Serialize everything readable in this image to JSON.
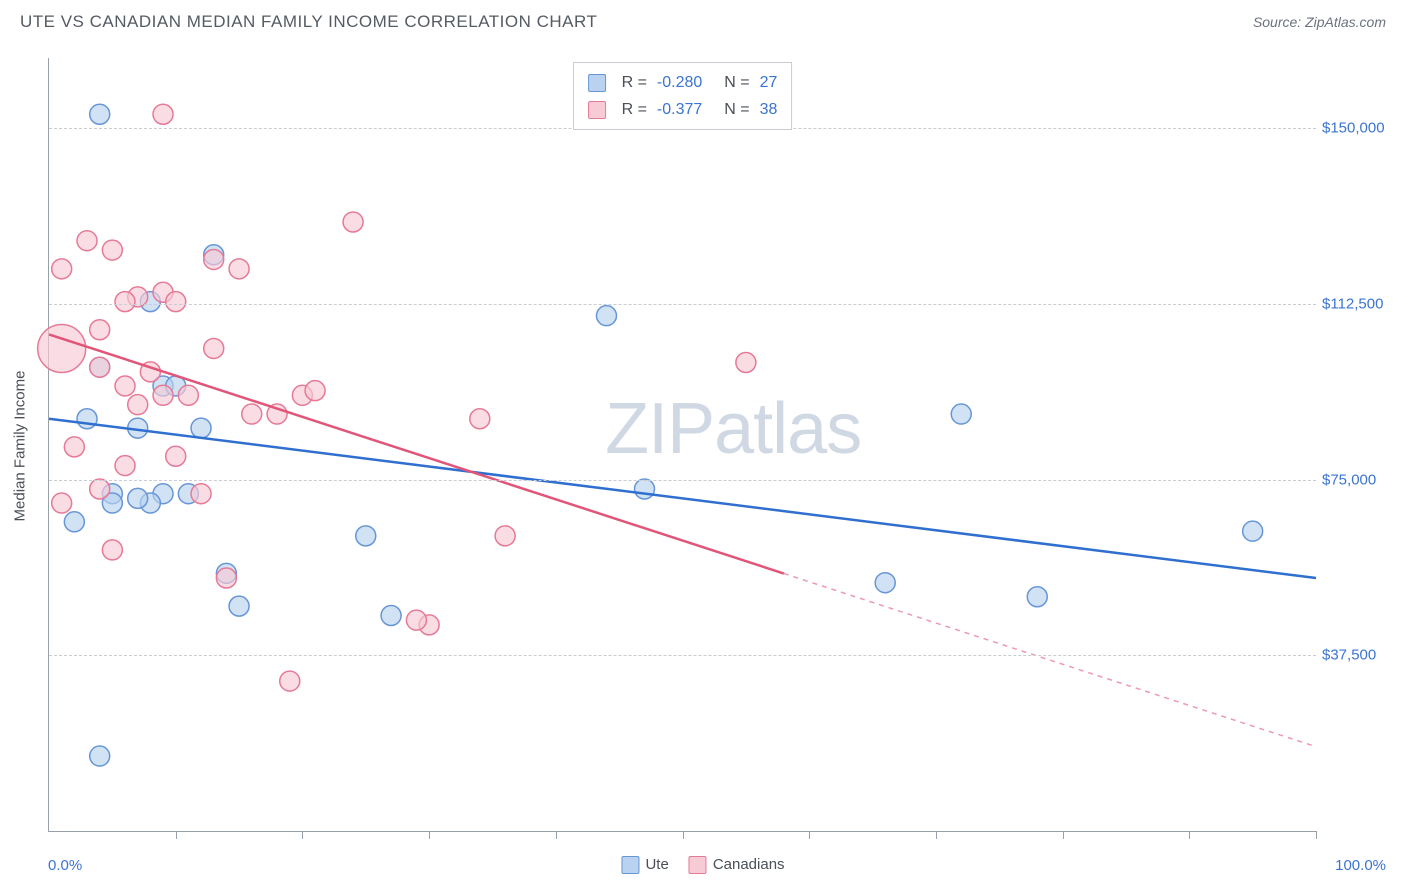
{
  "header": {
    "title": "UTE VS CANADIAN MEDIAN FAMILY INCOME CORRELATION CHART",
    "source": "Source: ZipAtlas.com"
  },
  "chart": {
    "type": "scatter",
    "y_axis_title": "Median Family Income",
    "xlim": [
      0,
      100
    ],
    "ylim": [
      0,
      165000
    ],
    "x_min_label": "0.0%",
    "x_max_label": "100.0%",
    "y_ticks": [
      {
        "value": 37500,
        "label": "$37,500"
      },
      {
        "value": 75000,
        "label": "$75,000"
      },
      {
        "value": 112500,
        "label": "$112,500"
      },
      {
        "value": 150000,
        "label": "$150,000"
      }
    ],
    "x_tick_positions": [
      10,
      20,
      30,
      40,
      50,
      60,
      70,
      80,
      90,
      100
    ],
    "grid_color": "#c8cdd3",
    "axis_color": "#9aa0a8",
    "background_color": "#ffffff",
    "watermark_parts": [
      "ZIP",
      "atlas"
    ],
    "watermark_color": "#cfd8e3",
    "series": [
      {
        "name": "Ute",
        "fill": "#b9d2f0",
        "stroke": "#6796d6",
        "line_color": "#2f6fcf",
        "marker_radius_px": 10,
        "stats": {
          "r": "-0.280",
          "n": "27"
        },
        "trend": {
          "x1": 0,
          "y1": 88000,
          "x2": 100,
          "y2": 54000,
          "dashed_from_x": null
        },
        "points": [
          {
            "x": 4,
            "y": 153000
          },
          {
            "x": 8,
            "y": 113000
          },
          {
            "x": 13,
            "y": 123000
          },
          {
            "x": 4,
            "y": 99000
          },
          {
            "x": 9,
            "y": 95000
          },
          {
            "x": 3,
            "y": 88000
          },
          {
            "x": 7,
            "y": 86000
          },
          {
            "x": 12,
            "y": 86000
          },
          {
            "x": 5,
            "y": 72000
          },
          {
            "x": 9,
            "y": 72000
          },
          {
            "x": 11,
            "y": 72000
          },
          {
            "x": 8,
            "y": 70000
          },
          {
            "x": 2,
            "y": 66000
          },
          {
            "x": 14,
            "y": 55000
          },
          {
            "x": 7,
            "y": 71000
          },
          {
            "x": 5,
            "y": 70000
          },
          {
            "x": 15,
            "y": 48000
          },
          {
            "x": 25,
            "y": 63000
          },
          {
            "x": 27,
            "y": 46000
          },
          {
            "x": 44,
            "y": 110000
          },
          {
            "x": 47,
            "y": 73000
          },
          {
            "x": 66,
            "y": 53000
          },
          {
            "x": 72,
            "y": 89000
          },
          {
            "x": 78,
            "y": 50000
          },
          {
            "x": 95,
            "y": 64000
          },
          {
            "x": 4,
            "y": 16000
          },
          {
            "x": 10,
            "y": 95000
          }
        ]
      },
      {
        "name": "Canadians",
        "fill": "#f7cbd6",
        "stroke": "#e67a96",
        "line_color": "#e15579",
        "marker_radius_px": 10,
        "stats": {
          "r": "-0.377",
          "n": "38"
        },
        "trend": {
          "x1": 0,
          "y1": 106000,
          "x2": 100,
          "y2": 18000,
          "dashed_from_x": 58
        },
        "points": [
          {
            "x": 9,
            "y": 153000
          },
          {
            "x": 3,
            "y": 126000
          },
          {
            "x": 5,
            "y": 124000
          },
          {
            "x": 1,
            "y": 120000
          },
          {
            "x": 13,
            "y": 122000
          },
          {
            "x": 7,
            "y": 114000
          },
          {
            "x": 9,
            "y": 115000
          },
          {
            "x": 4,
            "y": 107000
          },
          {
            "x": 10,
            "y": 113000
          },
          {
            "x": 1,
            "y": 103000,
            "r": 24
          },
          {
            "x": 4,
            "y": 99000
          },
          {
            "x": 8,
            "y": 98000
          },
          {
            "x": 13,
            "y": 103000
          },
          {
            "x": 6,
            "y": 95000
          },
          {
            "x": 9,
            "y": 93000
          },
          {
            "x": 11,
            "y": 93000
          },
          {
            "x": 16,
            "y": 89000
          },
          {
            "x": 20,
            "y": 93000
          },
          {
            "x": 7,
            "y": 91000
          },
          {
            "x": 15,
            "y": 120000
          },
          {
            "x": 2,
            "y": 82000
          },
          {
            "x": 6,
            "y": 78000
          },
          {
            "x": 10,
            "y": 80000
          },
          {
            "x": 4,
            "y": 73000
          },
          {
            "x": 1,
            "y": 70000
          },
          {
            "x": 14,
            "y": 54000
          },
          {
            "x": 19,
            "y": 32000
          },
          {
            "x": 21,
            "y": 94000
          },
          {
            "x": 24,
            "y": 130000
          },
          {
            "x": 30,
            "y": 44000
          },
          {
            "x": 34,
            "y": 88000
          },
          {
            "x": 36,
            "y": 63000
          },
          {
            "x": 29,
            "y": 45000
          },
          {
            "x": 55,
            "y": 100000
          },
          {
            "x": 18,
            "y": 89000
          },
          {
            "x": 12,
            "y": 72000
          },
          {
            "x": 6,
            "y": 113000
          },
          {
            "x": 5,
            "y": 60000
          }
        ]
      }
    ]
  },
  "bottom_legend": [
    {
      "label": "Ute",
      "fill": "#b9d2f0",
      "stroke": "#6796d6"
    },
    {
      "label": "Canadians",
      "fill": "#f7cbd6",
      "stroke": "#e67a96"
    }
  ],
  "stat_value_color": "#3b74d1"
}
